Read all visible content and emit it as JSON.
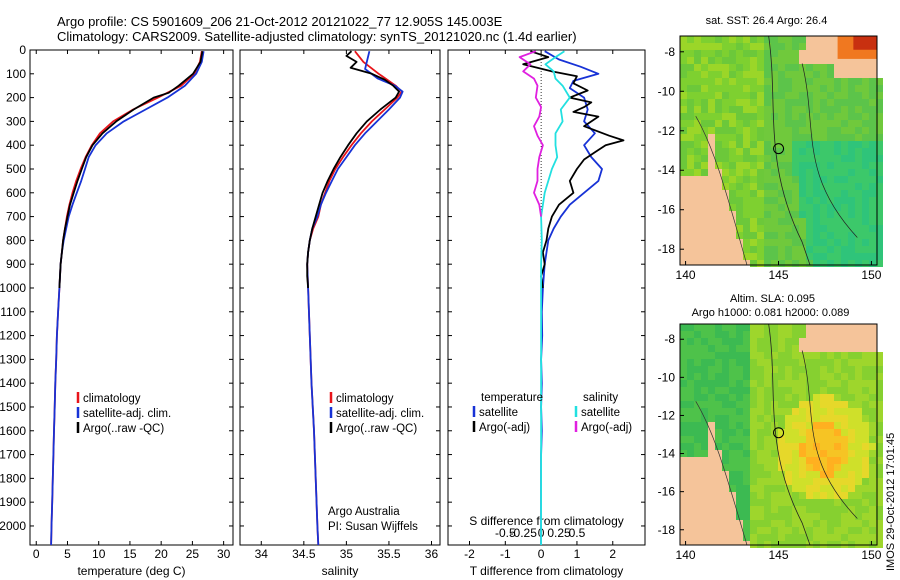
{
  "header": {
    "line1": "Argo profile: CS 5901609_206 21-Oct-2012 20121022_77 12.905S 145.003E",
    "line2": "Climatology: CARS2009. Satellite-adjusted climatology: synTS_20121020.nc (1.4d earlier)"
  },
  "colors": {
    "climatology": "#e8141a",
    "satellite": "#1732d6",
    "argo": "#000000",
    "sal_satellite": "#22e0e0",
    "sal_argo": "#e020e0",
    "land": "#f5c49a"
  },
  "chart_data": [
    {
      "type": "line",
      "name": "temperature-profile",
      "xlabel": "temperature (deg C)",
      "ylabel": "",
      "xlim": [
        -1,
        31.5
      ],
      "ylim": [
        2080,
        0
      ],
      "xticks": [
        0,
        5,
        10,
        15,
        20,
        25,
        30
      ],
      "xtick_labels": [
        "0",
        "5",
        "10",
        "15",
        "20",
        "25",
        "30"
      ],
      "yticks": [
        0,
        100,
        200,
        300,
        400,
        500,
        600,
        700,
        800,
        900,
        1000,
        1100,
        1200,
        1300,
        1400,
        1500,
        1600,
        1700,
        1800,
        1900,
        2000
      ],
      "ytick_labels": [
        "0",
        "100",
        "200",
        "300",
        "400",
        "500",
        "600",
        "700",
        "800",
        "900",
        "1000",
        "1100",
        "1200",
        "1300",
        "1400",
        "1500",
        "1600",
        "1700",
        "1800",
        "1900",
        "2000"
      ],
      "legend": [
        "climatology",
        "satellite-adj. clim.",
        "Argo(..raw -QC)"
      ],
      "series": [
        {
          "name": "climatology",
          "color_key": "climatology",
          "depth": [
            5,
            50,
            100,
            150,
            200,
            250,
            300,
            350,
            400,
            450,
            500,
            550,
            600,
            650,
            700,
            750,
            800,
            850,
            900,
            1000,
            1100,
            1200,
            1300,
            1400,
            1500,
            1600,
            1700,
            1800,
            1900,
            2000,
            2080
          ],
          "values": [
            26.5,
            26.2,
            25.3,
            23.2,
            19.5,
            15.5,
            12.3,
            10.2,
            8.9,
            7.9,
            7.1,
            6.4,
            5.8,
            5.3,
            4.9,
            4.6,
            4.3,
            4.1,
            3.9,
            3.7,
            3.5,
            3.3,
            3.2,
            3.05,
            2.95,
            2.85,
            2.75,
            2.65,
            2.55,
            2.45,
            2.38
          ]
        },
        {
          "name": "satellite-adj. clim.",
          "color_key": "satellite",
          "depth": [
            5,
            50,
            100,
            150,
            200,
            250,
            300,
            350,
            400,
            450,
            500,
            550,
            600,
            650,
            700,
            750,
            800,
            850,
            900,
            1000,
            1100,
            1200,
            1300,
            1400,
            1500,
            1600,
            1700,
            1800,
            1900,
            2000,
            2080
          ],
          "values": [
            26.8,
            26.5,
            25.6,
            23.8,
            21.0,
            17.5,
            14.0,
            11.3,
            9.5,
            8.4,
            7.8,
            7.2,
            6.5,
            5.8,
            5.2,
            4.8,
            4.4,
            4.1,
            3.9,
            3.7,
            3.5,
            3.3,
            3.2,
            3.05,
            2.95,
            2.85,
            2.75,
            2.65,
            2.55,
            2.45,
            2.38
          ]
        },
        {
          "name": "Argo(..raw -QC)",
          "color_key": "argo",
          "depth": [
            5,
            50,
            100,
            150,
            180,
            200,
            250,
            300,
            350,
            400,
            450,
            500,
            550,
            600,
            650,
            700,
            750,
            800,
            850,
            900,
            950,
            1000
          ],
          "values": [
            26.6,
            26.3,
            25.1,
            22.8,
            21.2,
            18.8,
            15.6,
            12.8,
            10.6,
            9.0,
            8.0,
            7.3,
            6.6,
            6.0,
            5.4,
            5.0,
            4.6,
            4.3,
            4.1,
            3.9,
            3.8,
            3.7
          ]
        }
      ]
    },
    {
      "type": "line",
      "name": "salinity-profile",
      "xlabel": "salinity",
      "ylabel": "",
      "xlim": [
        33.75,
        36.1
      ],
      "ylim": [
        2080,
        0
      ],
      "xticks": [
        34,
        34.5,
        35,
        35.5,
        36
      ],
      "xtick_labels": [
        "34",
        "34.5",
        "35",
        "35.5",
        "36"
      ],
      "legend": [
        "climatology",
        "satellite-adj. clim.",
        "Argo(..raw -QC)"
      ],
      "annotation": [
        "Argo Australia",
        "PI: Susan Wijffels"
      ],
      "series": [
        {
          "name": "climatology",
          "color_key": "climatology",
          "depth": [
            5,
            50,
            100,
            150,
            175,
            200,
            250,
            300,
            350,
            400,
            450,
            500,
            550,
            600,
            650,
            700,
            750,
            800,
            850,
            900,
            1000,
            1200,
            1400,
            1600,
            1800,
            2000,
            2080
          ],
          "values": [
            35.1,
            35.2,
            35.38,
            35.58,
            35.65,
            35.6,
            35.45,
            35.3,
            35.17,
            35.06,
            34.96,
            34.87,
            34.8,
            34.75,
            34.7,
            34.67,
            34.61,
            34.57,
            34.55,
            34.54,
            34.55,
            34.57,
            34.59,
            34.62,
            34.64,
            34.66,
            34.67
          ]
        },
        {
          "name": "satellite-adj. clim.",
          "color_key": "satellite",
          "depth": [
            5,
            50,
            80,
            120,
            150,
            175,
            200,
            250,
            300,
            350,
            400,
            450,
            500,
            550,
            600,
            650,
            700,
            750,
            800,
            850,
            900,
            1000,
            1200,
            1400,
            1600,
            1800,
            2000,
            2080
          ],
          "values": [
            35.27,
            35.24,
            35.22,
            35.37,
            35.57,
            35.66,
            35.63,
            35.5,
            35.36,
            35.22,
            35.1,
            35.0,
            34.9,
            34.83,
            34.76,
            34.7,
            34.66,
            34.6,
            34.57,
            34.55,
            34.54,
            34.55,
            34.57,
            34.59,
            34.62,
            34.64,
            34.66,
            34.67
          ]
        },
        {
          "name": "Argo(..raw -QC)",
          "color_key": "argo",
          "depth": [
            5,
            25,
            50,
            75,
            100,
            125,
            150,
            175,
            200,
            250,
            300,
            350,
            400,
            450,
            500,
            550,
            600,
            650,
            700,
            750,
            800,
            850,
            900,
            950,
            1000
          ],
          "values": [
            35.06,
            35.0,
            35.12,
            35.05,
            35.3,
            35.45,
            35.55,
            35.62,
            35.58,
            35.4,
            35.24,
            35.12,
            35.02,
            34.93,
            34.85,
            34.78,
            34.72,
            34.68,
            34.64,
            34.6,
            34.57,
            34.55,
            34.54,
            34.54,
            34.55
          ]
        }
      ]
    },
    {
      "type": "line",
      "name": "difference-from-climatology",
      "xlabel": "T difference from climatology",
      "xlabel_top": "S difference from climatology",
      "xlim": [
        -2.6,
        2.9
      ],
      "ylim": [
        2080,
        0
      ],
      "xticks": [
        -2,
        -1,
        0,
        1,
        2
      ],
      "xtick_labels": [
        "-2",
        "-1",
        "0",
        "1",
        "2"
      ],
      "sticks": [
        -1,
        -0.5,
        0,
        0.5,
        1
      ],
      "stick_labels": [
        "-0.5",
        "-0.25",
        "0",
        "0.25",
        "0.5"
      ],
      "legend_temperature_title": "temperature",
      "legend_salinity_title": "salinity",
      "legend_temperature": [
        "satellite",
        "Argo(-adj)"
      ],
      "legend_salinity": [
        "satellite",
        "Argo(-adj)"
      ],
      "series": [
        {
          "name": "temperature satellite",
          "color_key": "satellite",
          "depth": [
            5,
            40,
            70,
            100,
            130,
            160,
            200,
            250,
            300,
            350,
            400,
            450,
            500,
            550,
            600,
            650,
            700,
            750,
            800,
            900,
            1000,
            1100,
            1200,
            1300,
            1400,
            1500,
            1600,
            1700,
            1800,
            1900,
            2000,
            2080
          ],
          "values": [
            0.1,
            0.5,
            1.1,
            1.6,
            0.9,
            0.8,
            1.2,
            1.3,
            1.2,
            1.5,
            1.2,
            1.4,
            1.7,
            1.6,
            1.2,
            0.8,
            0.55,
            0.35,
            0.2,
            0.1,
            0.05,
            0.02,
            0.03,
            0.0,
            0.02,
            0.0,
            0.02,
            0.0,
            0.0,
            0.0,
            0.0,
            0.0
          ]
        },
        {
          "name": "temperature Argo",
          "color_key": "argo",
          "depth": [
            5,
            30,
            60,
            90,
            110,
            140,
            170,
            200,
            220,
            240,
            260,
            280,
            320,
            360,
            380,
            400,
            430,
            460,
            500,
            550,
            600,
            650,
            700,
            750,
            800,
            850,
            900,
            950,
            1000
          ],
          "values": [
            -0.3,
            0.2,
            -0.5,
            0.3,
            1.0,
            0.9,
            1.3,
            0.8,
            1.4,
            1.2,
            0.9,
            1.6,
            1.2,
            1.9,
            2.3,
            1.8,
            1.5,
            1.2,
            1.0,
            0.8,
            0.9,
            0.5,
            0.3,
            0.2,
            0.15,
            0.05,
            0.1,
            0.0,
            0.05
          ]
        },
        {
          "name": "salinity satellite",
          "color_key": "sal_satellite",
          "depth": [
            5,
            30,
            60,
            90,
            120,
            150,
            200,
            250,
            300,
            350,
            400,
            450,
            500,
            550,
            600,
            700,
            800,
            900,
            1000,
            1200,
            1400,
            1600,
            1800,
            2000,
            2080
          ],
          "values": [
            0.65,
            0.4,
            0.12,
            0.35,
            0.4,
            0.6,
            0.8,
            0.55,
            0.6,
            0.4,
            0.4,
            0.45,
            0.3,
            0.2,
            0.1,
            0.0,
            0.02,
            0.0,
            0.0,
            0.0,
            0.0,
            0.0,
            0.0,
            0.0,
            0.0
          ]
        },
        {
          "name": "salinity Argo",
          "color_key": "sal_argo",
          "depth": [
            5,
            30,
            60,
            90,
            120,
            150,
            200,
            240,
            280,
            320,
            360,
            400,
            450,
            500,
            550,
            600,
            650,
            700
          ],
          "values": [
            -0.15,
            -0.6,
            -0.3,
            -0.5,
            -0.2,
            -0.1,
            -0.15,
            0.0,
            -0.05,
            -0.2,
            -0.1,
            0.05,
            -0.05,
            -0.1,
            -0.1,
            -0.2,
            -0.05,
            0.0
          ]
        }
      ]
    }
  ],
  "maps": [
    {
      "title": "sat. SST: 26.4  Argo: 26.4",
      "title2": "",
      "lon_ticks": [
        "140",
        "145",
        "150"
      ],
      "lat_ticks": [
        "-8",
        "-10",
        "-12",
        "-14",
        "-16",
        "-18"
      ]
    },
    {
      "title": "Altim. SLA: 0.095",
      "title2": "Argo h1000: 0.081 h2000: 0.089",
      "lon_ticks": [
        "140",
        "145",
        "150"
      ],
      "lat_ticks": [
        "-8",
        "-10",
        "-12",
        "-14",
        "-16",
        "-18"
      ]
    }
  ],
  "stamp": "IMOS 29-Oct-2012 17:01:45"
}
